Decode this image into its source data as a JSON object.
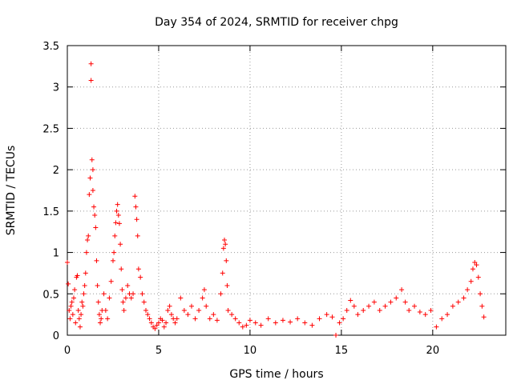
{
  "chart_data": {
    "type": "scatter",
    "title": "Day 354 of 2024, SRMTID for receiver chpg",
    "xlabel": "GPS time / hours",
    "ylabel": "SRMTID / TECUs",
    "xlim": [
      0,
      24
    ],
    "ylim": [
      0,
      3.5
    ],
    "xticks": [
      0,
      5,
      10,
      15,
      20
    ],
    "xtick_labels": [
      "0",
      "5",
      "10",
      "15",
      "20"
    ],
    "yticks": [
      0,
      0.5,
      1,
      1.5,
      2,
      2.5,
      3,
      3.5
    ],
    "ytick_labels": [
      "0",
      "0.5",
      "1",
      "1.5",
      "2",
      "2.5",
      "3",
      "3.5"
    ],
    "grid": true,
    "marker": "+",
    "color": "#ff0000",
    "series": [
      {
        "name": "SRMTID",
        "x": [
          0.0,
          0.05,
          0.1,
          0.15,
          0.2,
          0.25,
          0.3,
          0.35,
          0.4,
          0.45,
          0.5,
          0.55,
          0.6,
          0.65,
          0.7,
          0.75,
          0.8,
          0.85,
          0.9,
          0.95,
          1.0,
          1.05,
          1.1,
          1.15,
          1.2,
          1.25,
          1.3,
          1.3,
          1.35,
          1.4,
          1.4,
          1.45,
          1.5,
          1.55,
          1.6,
          1.65,
          1.7,
          1.75,
          1.8,
          1.85,
          1.9,
          2.0,
          2.1,
          2.2,
          2.3,
          2.4,
          2.5,
          2.55,
          2.6,
          2.65,
          2.7,
          2.75,
          2.8,
          2.85,
          2.9,
          2.95,
          3.0,
          3.05,
          3.1,
          3.2,
          3.3,
          3.4,
          3.5,
          3.6,
          3.7,
          3.75,
          3.8,
          3.85,
          3.9,
          4.0,
          4.1,
          4.2,
          4.3,
          4.4,
          4.5,
          4.6,
          4.7,
          4.8,
          4.9,
          5.0,
          5.1,
          5.2,
          5.3,
          5.4,
          5.5,
          5.6,
          5.7,
          5.8,
          5.9,
          6.0,
          6.2,
          6.4,
          6.6,
          6.8,
          7.0,
          7.2,
          7.4,
          7.5,
          7.6,
          7.8,
          8.0,
          8.2,
          8.4,
          8.5,
          8.55,
          8.6,
          8.65,
          8.7,
          8.75,
          8.8,
          9.0,
          9.2,
          9.4,
          9.6,
          9.8,
          10.0,
          10.3,
          10.6,
          11.0,
          11.4,
          11.8,
          12.2,
          12.6,
          13.0,
          13.4,
          13.8,
          14.2,
          14.5,
          14.7,
          14.9,
          15.1,
          15.3,
          15.5,
          15.7,
          15.9,
          16.2,
          16.5,
          16.8,
          17.1,
          17.4,
          17.7,
          18.0,
          18.3,
          18.5,
          18.7,
          19.0,
          19.3,
          19.6,
          19.9,
          20.2,
          20.5,
          20.8,
          21.1,
          21.4,
          21.7,
          21.9,
          22.1,
          22.2,
          22.3,
          22.4,
          22.5,
          22.6,
          22.7,
          22.8
        ],
        "y": [
          0.88,
          0.62,
          0.3,
          0.2,
          0.35,
          0.4,
          0.25,
          0.45,
          0.55,
          0.15,
          0.7,
          0.72,
          0.3,
          0.2,
          0.1,
          0.25,
          0.4,
          0.35,
          0.5,
          0.6,
          0.75,
          1.0,
          1.15,
          1.2,
          1.7,
          1.9,
          3.28,
          3.08,
          2.12,
          2.0,
          1.75,
          1.55,
          1.45,
          1.3,
          0.9,
          0.6,
          0.4,
          0.25,
          0.15,
          0.2,
          0.3,
          0.5,
          0.3,
          0.2,
          0.45,
          0.65,
          0.9,
          1.0,
          1.2,
          1.36,
          1.5,
          1.58,
          1.45,
          1.35,
          1.1,
          0.8,
          0.55,
          0.4,
          0.3,
          0.45,
          0.6,
          0.5,
          0.45,
          0.5,
          1.68,
          1.55,
          1.4,
          1.2,
          0.8,
          0.7,
          0.5,
          0.4,
          0.3,
          0.25,
          0.2,
          0.15,
          0.1,
          0.08,
          0.12,
          0.15,
          0.2,
          0.18,
          0.1,
          0.15,
          0.3,
          0.35,
          0.25,
          0.2,
          0.15,
          0.2,
          0.45,
          0.3,
          0.25,
          0.35,
          0.2,
          0.3,
          0.45,
          0.55,
          0.35,
          0.2,
          0.25,
          0.18,
          0.5,
          0.75,
          1.05,
          1.15,
          1.1,
          0.9,
          0.6,
          0.3,
          0.25,
          0.2,
          0.15,
          0.1,
          0.12,
          0.18,
          0.15,
          0.12,
          0.2,
          0.15,
          0.18,
          0.16,
          0.2,
          0.15,
          0.12,
          0.2,
          0.25,
          0.22,
          0.0,
          0.15,
          0.2,
          0.3,
          0.42,
          0.35,
          0.25,
          0.3,
          0.35,
          0.4,
          0.3,
          0.35,
          0.4,
          0.45,
          0.55,
          0.4,
          0.3,
          0.35,
          0.28,
          0.25,
          0.3,
          0.1,
          0.2,
          0.25,
          0.35,
          0.4,
          0.45,
          0.55,
          0.65,
          0.8,
          0.88,
          0.85,
          0.7,
          0.5,
          0.35,
          0.22
        ]
      }
    ]
  }
}
